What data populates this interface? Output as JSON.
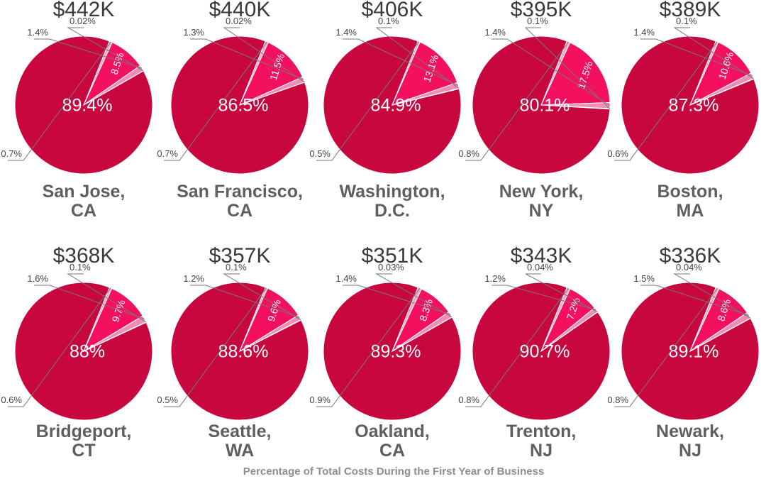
{
  "footer": "Percentage of Total Costs During the First Year of Business",
  "colors": {
    "main": "#c8073f",
    "second": "#f2105f",
    "third": "#f08cb5",
    "fourth": "#f4a3c4",
    "stroke": "#ffffff"
  },
  "chart_data": {
    "type": "pie",
    "slice_order_note_hidden": false,
    "charts": [
      {
        "total": "$442K",
        "city": [
          "San Jose,",
          "CA"
        ],
        "slices": [
          89.4,
          8.5,
          1.4,
          0.02,
          0.7
        ],
        "labels": [
          "89.4%",
          "8.5%",
          "1.4%",
          "0.02%",
          "0.7%"
        ]
      },
      {
        "total": "$440K",
        "city": [
          "San Francisco,",
          "CA"
        ],
        "slices": [
          86.5,
          11.5,
          1.3,
          0.02,
          0.7
        ],
        "labels": [
          "86.5%",
          "11.5%",
          "1.3%",
          "0.02%",
          "0.7%"
        ]
      },
      {
        "total": "$406K",
        "city": [
          "Washington,",
          "D.C."
        ],
        "slices": [
          84.9,
          13.1,
          1.4,
          0.1,
          0.5
        ],
        "labels": [
          "84.9%",
          "13.1%",
          "1.4%",
          "0.1%",
          "0.5%"
        ]
      },
      {
        "total": "$395K",
        "city": [
          "New York,",
          "NY"
        ],
        "slices": [
          80.1,
          17.5,
          1.4,
          0.1,
          0.8
        ],
        "labels": [
          "80.1%",
          "17.5%",
          "1.4%",
          "0.1%",
          "0.8%"
        ]
      },
      {
        "total": "$389K",
        "city": [
          "Boston,",
          "MA"
        ],
        "slices": [
          87.3,
          10.6,
          1.4,
          0.1,
          0.6
        ],
        "labels": [
          "87.3%",
          "10.6%",
          "1.4%",
          "0.1%",
          "0.6%"
        ]
      },
      {
        "total": "$368K",
        "city": [
          "Bridgeport,",
          "CT"
        ],
        "slices": [
          88,
          9.7,
          1.6,
          0.1,
          0.6
        ],
        "labels": [
          "88%",
          "9.7%",
          "1.6%",
          "0.1%",
          "0.6%"
        ]
      },
      {
        "total": "$357K",
        "city": [
          "Seattle,",
          "WA"
        ],
        "slices": [
          88.6,
          9.6,
          1.2,
          0.1,
          0.5
        ],
        "labels": [
          "88.6%",
          "9.6%",
          "1.2%",
          "0.1%",
          "0.5%"
        ]
      },
      {
        "total": "$351K",
        "city": [
          "Oakland,",
          "CA"
        ],
        "slices": [
          89.3,
          8.3,
          1.4,
          0.03,
          0.9
        ],
        "labels": [
          "89.3%",
          "8.3%",
          "1.4%",
          "0.03%",
          "0.9%"
        ]
      },
      {
        "total": "$343K",
        "city": [
          "Trenton,",
          "NJ"
        ],
        "slices": [
          90.7,
          7.2,
          1.2,
          0.04,
          0.8
        ],
        "labels": [
          "90.7%",
          "7.2%",
          "1.2%",
          "0.04%",
          "0.8%"
        ]
      },
      {
        "total": "$336K",
        "city": [
          "Newark,",
          "NJ"
        ],
        "slices": [
          89.1,
          8.6,
          1.5,
          0.04,
          0.8
        ],
        "labels": [
          "89.1%",
          "8.6%",
          "1.5%",
          "0.04%",
          "0.8%"
        ]
      }
    ]
  }
}
